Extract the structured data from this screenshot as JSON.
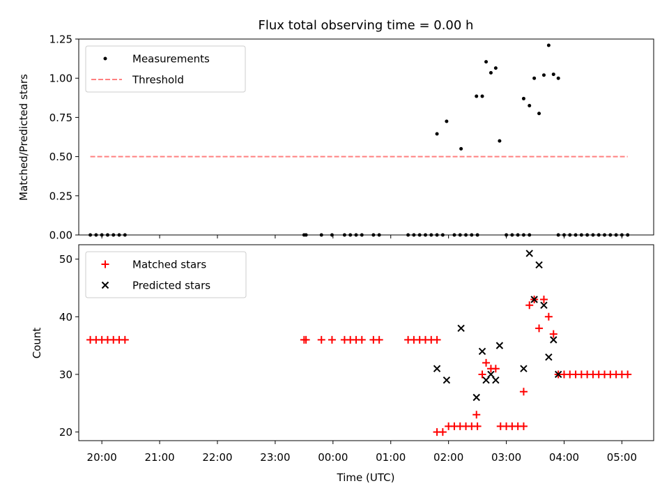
{
  "chart_data": [
    {
      "type": "scatter",
      "title": "Flux total observing time = 0.00 h",
      "xlabel": "",
      "ylabel": "Matched/Predicted stars",
      "xlim": [
        "19:36",
        "05:33"
      ],
      "ylim": [
        0,
        1.25
      ],
      "yticks": [
        "0.00",
        "0.25",
        "0.50",
        "0.75",
        "1.00",
        "1.25"
      ],
      "legend_position": "upper-left",
      "series": [
        {
          "name": "Measurements",
          "marker": "dot",
          "color": "#000000",
          "points": [
            [
              "19:48",
              0
            ],
            [
              "19:54",
              0
            ],
            [
              "20:00",
              0
            ],
            [
              "20:06",
              0
            ],
            [
              "20:12",
              0
            ],
            [
              "20:18",
              0
            ],
            [
              "20:24",
              0
            ],
            [
              "23:30",
              0
            ],
            [
              "23:32",
              0
            ],
            [
              "23:48",
              0
            ],
            [
              "23:59",
              0
            ],
            [
              "00:12",
              0
            ],
            [
              "00:18",
              0
            ],
            [
              "00:24",
              0
            ],
            [
              "00:30",
              0
            ],
            [
              "00:42",
              0
            ],
            [
              "00:48",
              0
            ],
            [
              "01:18",
              0
            ],
            [
              "01:24",
              0
            ],
            [
              "01:30",
              0
            ],
            [
              "01:36",
              0
            ],
            [
              "01:42",
              0
            ],
            [
              "01:48",
              0
            ],
            [
              "01:54",
              0
            ],
            [
              "02:06",
              0
            ],
            [
              "02:12",
              0
            ],
            [
              "02:18",
              0
            ],
            [
              "02:24",
              0
            ],
            [
              "02:30",
              0
            ],
            [
              "03:00",
              0
            ],
            [
              "03:06",
              0
            ],
            [
              "03:12",
              0
            ],
            [
              "03:18",
              0
            ],
            [
              "03:24",
              0
            ],
            [
              "03:54",
              0
            ],
            [
              "04:00",
              0
            ],
            [
              "04:06",
              0
            ],
            [
              "04:12",
              0
            ],
            [
              "04:18",
              0
            ],
            [
              "04:24",
              0
            ],
            [
              "04:30",
              0
            ],
            [
              "04:36",
              0
            ],
            [
              "04:42",
              0
            ],
            [
              "04:48",
              0
            ],
            [
              "04:54",
              0
            ],
            [
              "05:00",
              0
            ],
            [
              "05:06",
              0
            ],
            [
              "01:48",
              0.645
            ],
            [
              "01:58",
              0.725
            ],
            [
              "02:13",
              0.55
            ],
            [
              "02:29",
              0.885
            ],
            [
              "02:35",
              0.885
            ],
            [
              "02:39",
              1.105
            ],
            [
              "02:44",
              1.035
            ],
            [
              "02:49",
              1.065
            ],
            [
              "02:53",
              0.6
            ],
            [
              "03:18",
              0.87
            ],
            [
              "03:24",
              0.825
            ],
            [
              "03:29",
              1.0
            ],
            [
              "03:34",
              0.775
            ],
            [
              "03:39",
              1.02
            ],
            [
              "03:44",
              1.21
            ],
            [
              "03:49",
              1.025
            ],
            [
              "03:54",
              1.0
            ]
          ]
        },
        {
          "name": "Threshold",
          "style": "dashed",
          "color": "#ff8080",
          "x": [
            "19:48",
            "05:06"
          ],
          "y": [
            0.5,
            0.5
          ]
        }
      ]
    },
    {
      "type": "scatter",
      "title": "",
      "xlabel": "Time (UTC)",
      "ylabel": "Count",
      "xlim": [
        "19:36",
        "05:33"
      ],
      "ylim": [
        18.5,
        52.5
      ],
      "yticks": [
        "20",
        "30",
        "40",
        "50"
      ],
      "xticks": [
        "20:00",
        "21:00",
        "22:00",
        "23:00",
        "00:00",
        "01:00",
        "02:00",
        "03:00",
        "04:00",
        "05:00"
      ],
      "legend_position": "upper-left",
      "series": [
        {
          "name": "Matched stars",
          "marker": "plus",
          "color": "#ff0000",
          "points": [
            [
              "19:48",
              36
            ],
            [
              "19:54",
              36
            ],
            [
              "20:00",
              36
            ],
            [
              "20:06",
              36
            ],
            [
              "20:12",
              36
            ],
            [
              "20:18",
              36
            ],
            [
              "20:24",
              36
            ],
            [
              "23:30",
              36
            ],
            [
              "23:32",
              36
            ],
            [
              "23:48",
              36
            ],
            [
              "23:59",
              36
            ],
            [
              "00:12",
              36
            ],
            [
              "00:18",
              36
            ],
            [
              "00:24",
              36
            ],
            [
              "00:30",
              36
            ],
            [
              "00:42",
              36
            ],
            [
              "00:48",
              36
            ],
            [
              "01:18",
              36
            ],
            [
              "01:24",
              36
            ],
            [
              "01:30",
              36
            ],
            [
              "01:36",
              36
            ],
            [
              "01:42",
              36
            ],
            [
              "01:48",
              36
            ],
            [
              "01:48",
              20
            ],
            [
              "01:54",
              20
            ],
            [
              "02:00",
              21
            ],
            [
              "02:06",
              21
            ],
            [
              "02:12",
              21
            ],
            [
              "02:18",
              21
            ],
            [
              "02:24",
              21
            ],
            [
              "02:30",
              21
            ],
            [
              "02:29",
              23
            ],
            [
              "02:35",
              30
            ],
            [
              "02:39",
              32
            ],
            [
              "02:44",
              31
            ],
            [
              "02:49",
              31
            ],
            [
              "02:54",
              21
            ],
            [
              "03:00",
              21
            ],
            [
              "03:06",
              21
            ],
            [
              "03:12",
              21
            ],
            [
              "03:18",
              21
            ],
            [
              "03:18",
              27
            ],
            [
              "03:24",
              42
            ],
            [
              "03:29",
              43
            ],
            [
              "03:34",
              38
            ],
            [
              "03:39",
              43
            ],
            [
              "03:44",
              40
            ],
            [
              "03:49",
              37
            ],
            [
              "03:54",
              30
            ],
            [
              "04:00",
              30
            ],
            [
              "04:06",
              30
            ],
            [
              "04:12",
              30
            ],
            [
              "04:18",
              30
            ],
            [
              "04:24",
              30
            ],
            [
              "04:30",
              30
            ],
            [
              "04:36",
              30
            ],
            [
              "04:42",
              30
            ],
            [
              "04:48",
              30
            ],
            [
              "04:54",
              30
            ],
            [
              "05:00",
              30
            ],
            [
              "05:06",
              30
            ]
          ]
        },
        {
          "name": "Predicted stars",
          "marker": "x",
          "color": "#000000",
          "points": [
            [
              "01:48",
              31
            ],
            [
              "01:58",
              29
            ],
            [
              "02:13",
              38
            ],
            [
              "02:29",
              26
            ],
            [
              "02:35",
              34
            ],
            [
              "02:39",
              29
            ],
            [
              "02:44",
              30
            ],
            [
              "02:49",
              29
            ],
            [
              "02:53",
              35
            ],
            [
              "03:18",
              31
            ],
            [
              "03:24",
              51
            ],
            [
              "03:29",
              43
            ],
            [
              "03:34",
              49
            ],
            [
              "03:39",
              42
            ],
            [
              "03:44",
              33
            ],
            [
              "03:49",
              36
            ],
            [
              "03:54",
              30
            ]
          ]
        }
      ]
    }
  ]
}
